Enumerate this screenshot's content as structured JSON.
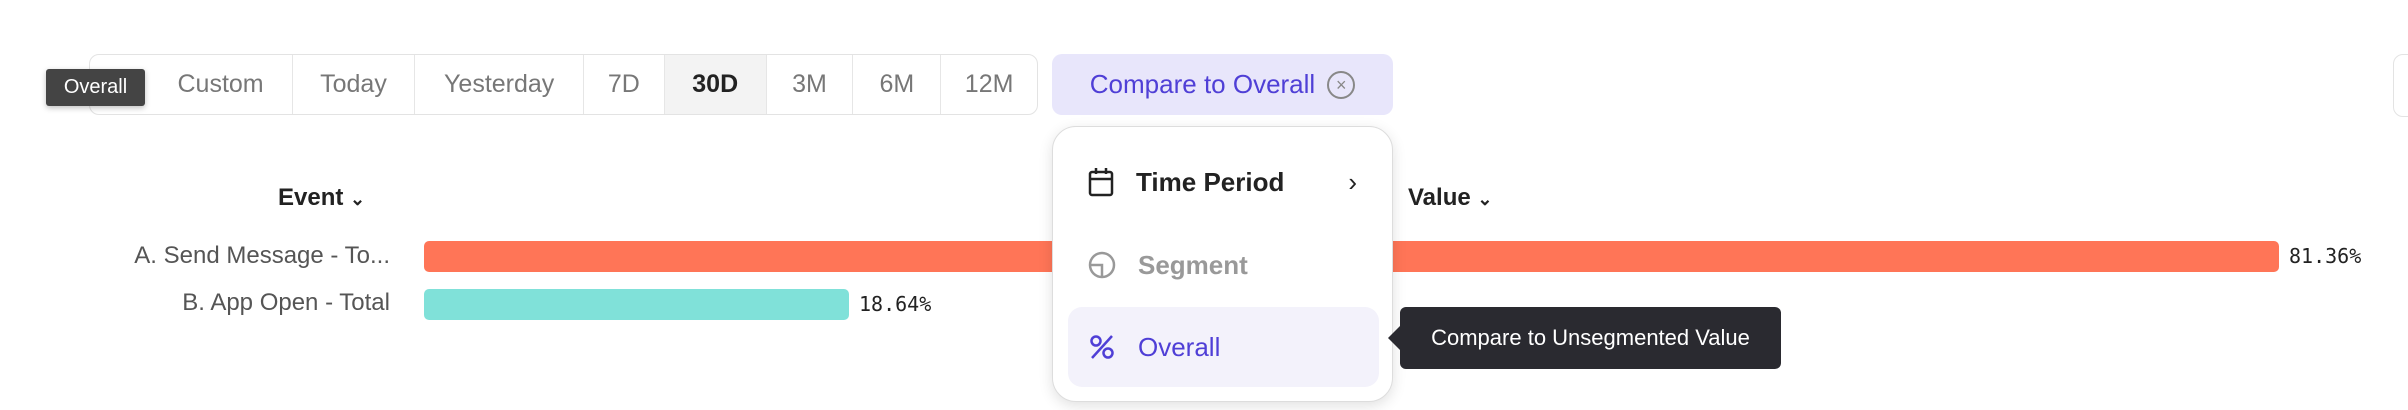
{
  "presets": [
    {
      "label": "Custom",
      "w": 203
    },
    {
      "label": "Today",
      "w": 123
    },
    {
      "label": "Yesterday",
      "w": 169
    },
    {
      "label": "7D",
      "w": 81
    },
    {
      "label": "30D",
      "w": 102,
      "active": true
    },
    {
      "label": "3M",
      "w": 87
    },
    {
      "label": "6M",
      "w": 88
    },
    {
      "label": "12M",
      "w": 96
    }
  ],
  "compare": {
    "label": "Compare to Overall"
  },
  "hover_tooltip": "Overall",
  "table": {
    "col_event": "Event",
    "col_value": "Value"
  },
  "rows": [
    {
      "label": "A. Send Message - To...",
      "value": 81.36,
      "value_label": "81.36%",
      "color": "#ff7557"
    },
    {
      "label": "B. App Open - Total",
      "value": 18.64,
      "value_label": "18.64%",
      "color": "#80e1d9"
    }
  ],
  "menu": {
    "items": [
      {
        "label": "Time Period",
        "icon": "calendar-icon"
      },
      {
        "label": "Segment",
        "icon": "segment-icon",
        "disabled": true
      },
      {
        "label": "Overall",
        "icon": "percent-icon",
        "selected": true
      }
    ]
  },
  "menu_tooltip": "Compare to Unsegmented Value",
  "colors": {
    "accent": "#4f3fd6",
    "accent_bg": "#e8e6fb"
  }
}
